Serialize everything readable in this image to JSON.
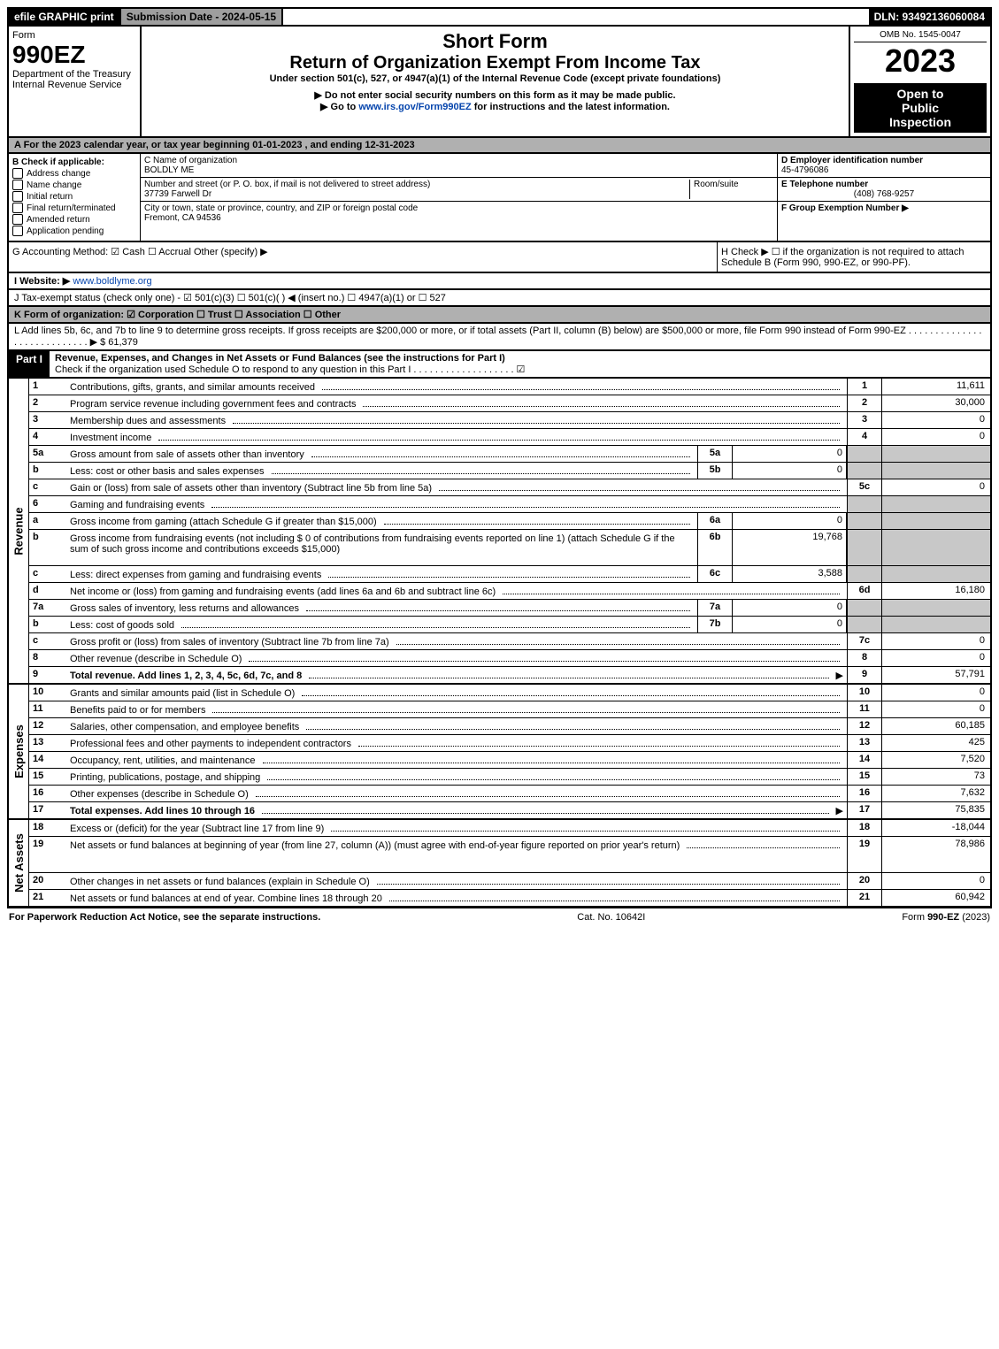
{
  "topbar": {
    "efile": "efile GRAPHIC print",
    "submission": "Submission Date - 2024-05-15",
    "dln": "DLN: 93492136060084"
  },
  "header": {
    "form_label": "Form",
    "form_number": "990EZ",
    "dept": "Department of the Treasury",
    "irs": "Internal Revenue Service",
    "short_form": "Short Form",
    "title": "Return of Organization Exempt From Income Tax",
    "sub1": "Under section 501(c), 527, or 4947(a)(1) of the Internal Revenue Code (except private foundations)",
    "sub2": "▶ Do not enter social security numbers on this form as it may be made public.",
    "sub3": "▶ Go to www.irs.gov/Form990EZ for instructions and the latest information.",
    "omb": "OMB No. 1545-0047",
    "year": "2023",
    "open1": "Open to",
    "open2": "Public",
    "open3": "Inspection"
  },
  "row_a": "A  For the 2023 calendar year, or tax year beginning 01-01-2023 , and ending 12-31-2023",
  "col_b": {
    "header": "B  Check if applicable:",
    "items": [
      "Address change",
      "Name change",
      "Initial return",
      "Final return/terminated",
      "Amended return",
      "Application pending"
    ]
  },
  "col_c": {
    "name_label": "C Name of organization",
    "name": "BOLDLY ME",
    "street_label": "Number and street (or P. O. box, if mail is not delivered to street address)",
    "room_label": "Room/suite",
    "street": "37739 Farwell Dr",
    "city_label": "City or town, state or province, country, and ZIP or foreign postal code",
    "city": "Fremont, CA  94536"
  },
  "col_d": {
    "ein_label": "D Employer identification number",
    "ein": "45-4796086",
    "phone_label": "E Telephone number",
    "phone": "(408) 768-9257",
    "group_label": "F Group Exemption Number  ▶"
  },
  "row_g": "G Accounting Method:  ☑ Cash  ☐ Accrual  Other (specify) ▶",
  "row_h": "H  Check ▶  ☐  if the organization is not required to attach Schedule B (Form 990, 990-EZ, or 990-PF).",
  "row_i": "I Website: ▶ www.boldlyme.org",
  "row_j": "J Tax-exempt status (check only one) - ☑ 501(c)(3) ☐ 501(c)(  ) ◀ (insert no.) ☐ 4947(a)(1) or ☐ 527",
  "row_k": "K Form of organization:  ☑ Corporation  ☐ Trust  ☐ Association  ☐ Other",
  "row_l": "L Add lines 5b, 6c, and 7b to line 9 to determine gross receipts. If gross receipts are $200,000 or more, or if total assets (Part II, column (B) below) are $500,000 or more, file Form 990 instead of Form 990-EZ . . . . . . . . . . . . . . . . . . . . . . . . . . . . ▶ $ 61,379",
  "part1": {
    "label": "Part I",
    "title": "Revenue, Expenses, and Changes in Net Assets or Fund Balances (see the instructions for Part I)",
    "check": "Check if the organization used Schedule O to respond to any question in this Part I . . . . . . . . . . . . . . . . . . . ☑"
  },
  "sections": {
    "revenue_label": "Revenue",
    "expenses_label": "Expenses",
    "netassets_label": "Net Assets"
  },
  "revenue_lines": [
    {
      "n": "1",
      "desc": "Contributions, gifts, grants, and similar amounts received",
      "end_n": "1",
      "end_v": "11,611"
    },
    {
      "n": "2",
      "desc": "Program service revenue including government fees and contracts",
      "end_n": "2",
      "end_v": "30,000"
    },
    {
      "n": "3",
      "desc": "Membership dues and assessments",
      "end_n": "3",
      "end_v": "0"
    },
    {
      "n": "4",
      "desc": "Investment income",
      "end_n": "4",
      "end_v": "0"
    },
    {
      "n": "5a",
      "desc": "Gross amount from sale of assets other than inventory",
      "mid_n": "5a",
      "mid_v": "0",
      "shade_end": true
    },
    {
      "n": "b",
      "desc": "Less: cost or other basis and sales expenses",
      "mid_n": "5b",
      "mid_v": "0",
      "shade_end": true
    },
    {
      "n": "c",
      "desc": "Gain or (loss) from sale of assets other than inventory (Subtract line 5b from line 5a)",
      "end_n": "5c",
      "end_v": "0"
    },
    {
      "n": "6",
      "desc": "Gaming and fundraising events",
      "shade_end": true
    },
    {
      "n": "a",
      "desc": "Gross income from gaming (attach Schedule G if greater than $15,000)",
      "mid_n": "6a",
      "mid_v": "0",
      "shade_end": true
    },
    {
      "n": "b",
      "desc": "Gross income from fundraising events (not including $ 0 of contributions from fundraising events reported on line 1) (attach Schedule G if the sum of such gross income and contributions exceeds $15,000)",
      "mid_n": "6b",
      "mid_v": "19,768",
      "shade_end": true,
      "tall": true
    },
    {
      "n": "c",
      "desc": "Less: direct expenses from gaming and fundraising events",
      "mid_n": "6c",
      "mid_v": "3,588",
      "shade_end": true
    },
    {
      "n": "d",
      "desc": "Net income or (loss) from gaming and fundraising events (add lines 6a and 6b and subtract line 6c)",
      "end_n": "6d",
      "end_v": "16,180"
    },
    {
      "n": "7a",
      "desc": "Gross sales of inventory, less returns and allowances",
      "mid_n": "7a",
      "mid_v": "0",
      "shade_end": true
    },
    {
      "n": "b",
      "desc": "Less: cost of goods sold",
      "mid_n": "7b",
      "mid_v": "0",
      "shade_end": true
    },
    {
      "n": "c",
      "desc": "Gross profit or (loss) from sales of inventory (Subtract line 7b from line 7a)",
      "end_n": "7c",
      "end_v": "0"
    },
    {
      "n": "8",
      "desc": "Other revenue (describe in Schedule O)",
      "end_n": "8",
      "end_v": "0"
    },
    {
      "n": "9",
      "desc": "Total revenue. Add lines 1, 2, 3, 4, 5c, 6d, 7c, and 8",
      "end_n": "9",
      "end_v": "57,791",
      "bold": true,
      "arrow": true
    }
  ],
  "expense_lines": [
    {
      "n": "10",
      "desc": "Grants and similar amounts paid (list in Schedule O)",
      "end_n": "10",
      "end_v": "0"
    },
    {
      "n": "11",
      "desc": "Benefits paid to or for members",
      "end_n": "11",
      "end_v": "0"
    },
    {
      "n": "12",
      "desc": "Salaries, other compensation, and employee benefits",
      "end_n": "12",
      "end_v": "60,185"
    },
    {
      "n": "13",
      "desc": "Professional fees and other payments to independent contractors",
      "end_n": "13",
      "end_v": "425"
    },
    {
      "n": "14",
      "desc": "Occupancy, rent, utilities, and maintenance",
      "end_n": "14",
      "end_v": "7,520"
    },
    {
      "n": "15",
      "desc": "Printing, publications, postage, and shipping",
      "end_n": "15",
      "end_v": "73"
    },
    {
      "n": "16",
      "desc": "Other expenses (describe in Schedule O)",
      "end_n": "16",
      "end_v": "7,632"
    },
    {
      "n": "17",
      "desc": "Total expenses. Add lines 10 through 16",
      "end_n": "17",
      "end_v": "75,835",
      "bold": true,
      "arrow": true
    }
  ],
  "netasset_lines": [
    {
      "n": "18",
      "desc": "Excess or (deficit) for the year (Subtract line 17 from line 9)",
      "end_n": "18",
      "end_v": "-18,044"
    },
    {
      "n": "19",
      "desc": "Net assets or fund balances at beginning of year (from line 27, column (A)) (must agree with end-of-year figure reported on prior year's return)",
      "end_n": "19",
      "end_v": "78,986",
      "tall": true
    },
    {
      "n": "20",
      "desc": "Other changes in net assets or fund balances (explain in Schedule O)",
      "end_n": "20",
      "end_v": "0"
    },
    {
      "n": "21",
      "desc": "Net assets or fund balances at end of year. Combine lines 18 through 20",
      "end_n": "21",
      "end_v": "60,942"
    }
  ],
  "footer": {
    "left": "For Paperwork Reduction Act Notice, see the separate instructions.",
    "mid": "Cat. No. 10642I",
    "right": "Form 990-EZ (2023)"
  }
}
